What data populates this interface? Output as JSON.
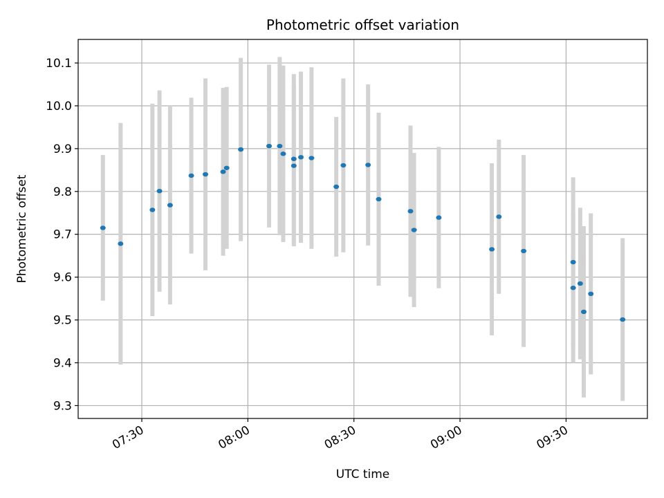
{
  "chart_data": {
    "type": "scatter",
    "title": "Photometric offset variation",
    "xlabel": "UTC time",
    "ylabel": "Photometric offset",
    "x_ticks": [
      "07:30",
      "08:00",
      "08:30",
      "09:00",
      "09:30"
    ],
    "y_ticks": [
      "9.3",
      "9.4",
      "9.5",
      "9.6",
      "9.7",
      "9.8",
      "9.9",
      "10.0",
      "10.1"
    ],
    "xlim": [
      "07:12",
      "09:53"
    ],
    "ylim": [
      9.27,
      10.155
    ],
    "grid": true,
    "point_color": "#1f77b4",
    "errorbar_color": "#d3d3d3",
    "points": [
      {
        "x": "07:19",
        "y": 9.715,
        "err": 0.17
      },
      {
        "x": "07:24",
        "y": 9.678,
        "err": 0.282
      },
      {
        "x": "07:33",
        "y": 9.757,
        "err": 0.248
      },
      {
        "x": "07:35",
        "y": 9.801,
        "err": 0.235
      },
      {
        "x": "07:38",
        "y": 9.768,
        "err": 0.232
      },
      {
        "x": "07:44",
        "y": 9.837,
        "err": 0.182
      },
      {
        "x": "07:48",
        "y": 9.84,
        "err": 0.224
      },
      {
        "x": "07:53",
        "y": 9.846,
        "err": 0.196
      },
      {
        "x": "07:54",
        "y": 9.855,
        "err": 0.189
      },
      {
        "x": "07:58",
        "y": 9.898,
        "err": 0.214
      },
      {
        "x": "08:06",
        "y": 9.906,
        "err": 0.19
      },
      {
        "x": "08:09",
        "y": 9.906,
        "err": 0.208
      },
      {
        "x": "08:10",
        "y": 9.888,
        "err": 0.206
      },
      {
        "x": "08:13",
        "y": 9.86,
        "err": 0.188
      },
      {
        "x": "08:13",
        "y": 9.876,
        "err": 0.198
      },
      {
        "x": "08:15",
        "y": 9.88,
        "err": 0.2
      },
      {
        "x": "08:18",
        "y": 9.878,
        "err": 0.212
      },
      {
        "x": "08:25",
        "y": 9.811,
        "err": 0.163
      },
      {
        "x": "08:27",
        "y": 9.861,
        "err": 0.203
      },
      {
        "x": "08:34",
        "y": 9.862,
        "err": 0.188
      },
      {
        "x": "08:37",
        "y": 9.782,
        "err": 0.202
      },
      {
        "x": "08:46",
        "y": 9.754,
        "err": 0.2
      },
      {
        "x": "08:47",
        "y": 9.71,
        "err": 0.18
      },
      {
        "x": "08:54",
        "y": 9.739,
        "err": 0.165
      },
      {
        "x": "09:09",
        "y": 9.665,
        "err": 0.201
      },
      {
        "x": "09:11",
        "y": 9.741,
        "err": 0.18
      },
      {
        "x": "09:18",
        "y": 9.661,
        "err": 0.224
      },
      {
        "x": "09:32",
        "y": 9.575,
        "err": 0.175
      },
      {
        "x": "09:32",
        "y": 9.635,
        "err": 0.198
      },
      {
        "x": "09:34",
        "y": 9.585,
        "err": 0.177
      },
      {
        "x": "09:35",
        "y": 9.519,
        "err": 0.2
      },
      {
        "x": "09:37",
        "y": 9.561,
        "err": 0.188
      },
      {
        "x": "09:46",
        "y": 9.501,
        "err": 0.19
      }
    ]
  }
}
